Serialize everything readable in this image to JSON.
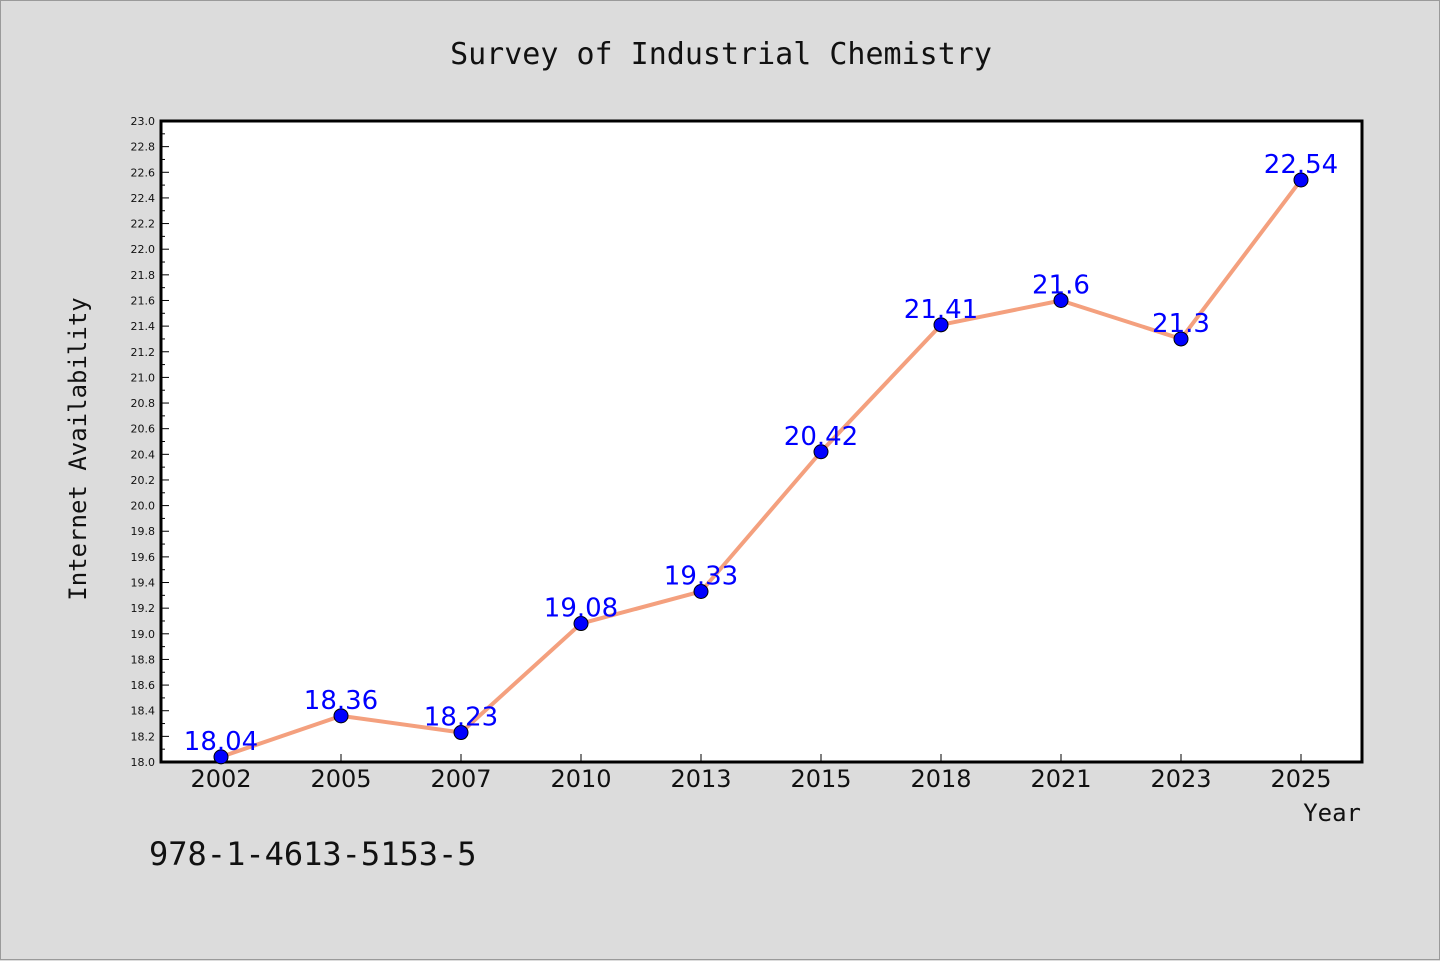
{
  "footnote": "978-1-4613-5153-5",
  "chart_data": {
    "type": "line",
    "title": "Survey of Industrial Chemistry",
    "xlabel": "Year",
    "ylabel": "Internet Availability",
    "categories": [
      "2002",
      "2005",
      "2007",
      "2010",
      "2013",
      "2015",
      "2018",
      "2021",
      "2023",
      "2025"
    ],
    "series": [
      {
        "values": [
          18.04,
          18.36,
          18.23,
          19.08,
          19.33,
          20.42,
          21.41,
          21.6,
          21.3,
          22.54
        ],
        "labels": [
          "18.04",
          "18.36",
          "18.23",
          "19.08",
          "19.33",
          "20.42",
          "21.41",
          "21.6",
          "21.3",
          "22.54"
        ],
        "line_color": "#f4a07e",
        "marker_color": "#0000ff"
      }
    ],
    "ylim": [
      18.0,
      23.0
    ],
    "ytick_step": 0.2,
    "grid": false,
    "legend": "none",
    "plot_background": "#ffffff",
    "page_background": "#dcdcdc"
  }
}
